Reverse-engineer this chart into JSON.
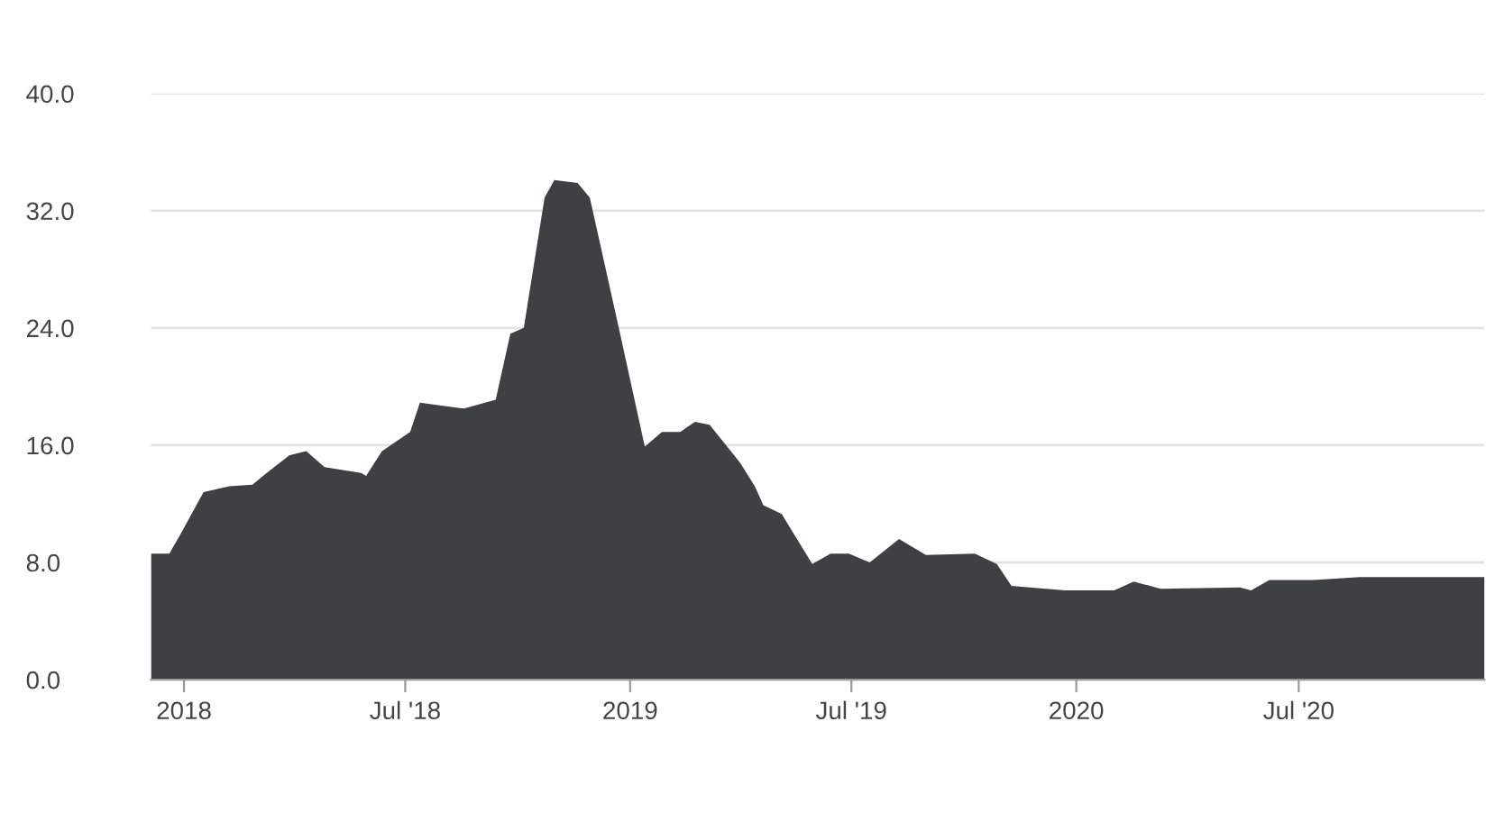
{
  "chart_data": {
    "type": "area",
    "x": [
      "2017-12-05",
      "2017-12-20",
      "2017-12-29",
      "2018-01-17",
      "2018-02-07",
      "2018-02-26",
      "2018-03-08",
      "2018-03-28",
      "2018-04-11",
      "2018-04-26",
      "2018-05-26",
      "2018-05-30",
      "2018-06-12",
      "2018-07-05",
      "2018-07-13",
      "2018-08-18",
      "2018-09-13",
      "2018-09-25",
      "2018-10-06",
      "2018-10-23",
      "2018-10-31",
      "2018-11-19",
      "2018-11-29",
      "2018-12-23",
      "2019-01-13",
      "2019-01-27",
      "2019-02-11",
      "2019-02-23",
      "2019-03-07",
      "2019-04-01",
      "2019-04-13",
      "2019-04-20",
      "2019-05-05",
      "2019-05-30",
      "2019-06-14",
      "2019-06-29",
      "2019-07-16",
      "2019-08-09",
      "2019-08-31",
      "2019-10-10",
      "2019-10-28",
      "2019-11-09",
      "2019-11-24",
      "2019-12-23",
      "2020-02-01",
      "2020-02-17",
      "2020-03-10",
      "2020-05-14",
      "2020-05-23",
      "2020-06-07",
      "2020-07-13",
      "2020-08-20",
      "2020-11-30"
    ],
    "series": [
      {
        "color": "#3d4142",
        "values": [
          8.6,
          8.6,
          9.9,
          12.8,
          13.2,
          13.3,
          14.0,
          15.3,
          15.6,
          14.5,
          14.1,
          13.9,
          15.6,
          16.9,
          18.9,
          18.5,
          19.1,
          23.6,
          24.0,
          32.9,
          34.1,
          33.9,
          32.9,
          23.9,
          15.9,
          16.9,
          16.9,
          17.6,
          17.4,
          14.8,
          13.2,
          11.9,
          11.3,
          7.9,
          8.6,
          8.6,
          8.0,
          9.6,
          8.5,
          8.6,
          7.9,
          6.4,
          6.3,
          6.1,
          6.1,
          6.7,
          6.2,
          6.3,
          6.1,
          6.8,
          6.8,
          7.0,
          7.0
        ]
      }
    ],
    "xlim": [
      "2017-12-05",
      "2020-11-30"
    ],
    "xticks": [
      {
        "value": "2018-01-01",
        "label": "2018"
      },
      {
        "value": "2018-07-01",
        "label": "Jul '18"
      },
      {
        "value": "2019-01-01",
        "label": "2019"
      },
      {
        "value": "2019-07-01",
        "label": "Jul '19"
      },
      {
        "value": "2020-01-01",
        "label": "2020"
      },
      {
        "value": "2020-07-01",
        "label": "Jul '20"
      }
    ],
    "ylim": [
      0,
      40
    ],
    "yticks": [
      {
        "value": 0,
        "label": "0.0"
      },
      {
        "value": 8,
        "label": "8.0"
      },
      {
        "value": 16,
        "label": "16.0"
      },
      {
        "value": 24,
        "label": "24.0"
      },
      {
        "value": 32,
        "label": "32.0"
      },
      {
        "value": 40,
        "label": "40.0"
      }
    ],
    "grid": "y"
  }
}
